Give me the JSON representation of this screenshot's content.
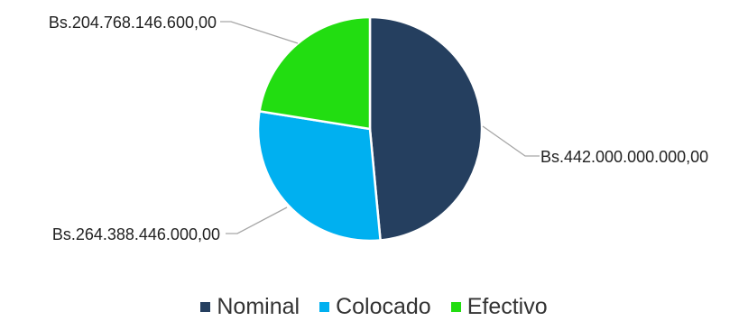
{
  "chart_data": {
    "type": "pie",
    "categories": [
      "Nominal",
      "Colocado",
      "Efectivo"
    ],
    "values": [
      442000000000,
      264388446000,
      204768146600
    ],
    "data_labels": [
      "Bs.442.000.000.000,00",
      "Bs.264.388.446.000,00",
      "Bs.204.768.146.600,00"
    ],
    "colors": [
      "#253f5f",
      "#00b0f0",
      "#22dd11"
    ],
    "legend": {
      "position": "bottom",
      "entries": [
        "Nominal",
        "Colocado",
        "Efectivo"
      ]
    },
    "start_angle_deg": 0,
    "direction": "clockwise"
  }
}
